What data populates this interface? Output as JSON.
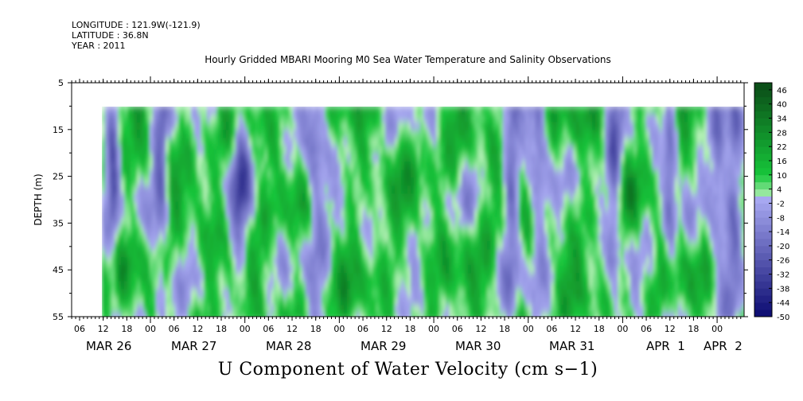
{
  "header": {
    "longitude": "LONGITUDE : 121.9W(-121.9)",
    "latitude": "LATITUDE : 36.8N",
    "year": "YEAR : 2011"
  },
  "chart_data": {
    "type": "heatmap",
    "title": "Hourly Gridded MBARI Mooring M0 Sea Water Temperature and Salinity Observations",
    "xlabel": "U Component of Water Velocity (cm s−1)",
    "ylabel": "DEPTH (m)",
    "y_axis": {
      "range": [
        5,
        55
      ],
      "inverted": true,
      "tick_values": [
        5,
        15,
        25,
        35,
        45,
        55
      ],
      "tick_labels": [
        "5",
        "15",
        "25",
        "35",
        "45",
        "55"
      ]
    },
    "x_axis": {
      "hour_tick_labels": [
        "06",
        "12",
        "18",
        "00",
        "06",
        "12",
        "18",
        "00",
        "06",
        "12",
        "18",
        "00",
        "06",
        "12",
        "18",
        "00",
        "06",
        "12",
        "18",
        "00",
        "06",
        "12",
        "18",
        "00",
        "06",
        "12",
        "18",
        "00"
      ],
      "date_labels": [
        "MAR 26",
        "MAR 27",
        "MAR 28",
        "MAR 29",
        "MAR 30",
        "MAR 31",
        "APR  1",
        "APR  2"
      ]
    },
    "data_depth_range": [
      10,
      55
    ],
    "colorbar": {
      "levels": [
        "46",
        "40",
        "34",
        "28",
        "22",
        "16",
        "10",
        "4",
        "-2",
        "-8",
        "-14",
        "-20",
        "-26",
        "-32",
        "-38",
        "-44",
        "-50"
      ],
      "min": -50,
      "max": 49,
      "step": 3
    },
    "colors": {
      "positive_strong": "#0b4a17",
      "positive_mid": "#16c63a",
      "positive_light": "#bff3bf",
      "negative_light": "#a9aaf2",
      "negative_strong": "#0a0a70"
    }
  }
}
